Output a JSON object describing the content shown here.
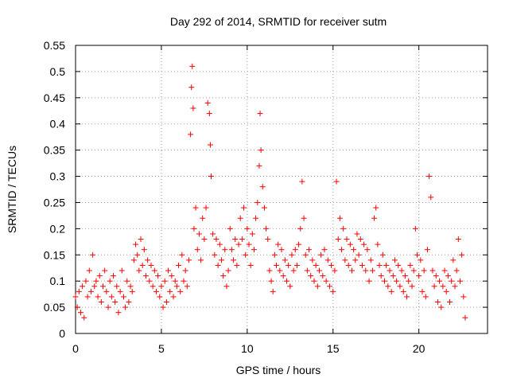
{
  "chart_data": {
    "type": "scatter",
    "title": "Day 292 of 2014, SRMTID for receiver sutm",
    "xlabel": "GPS time / hours",
    "ylabel": "SRMTID / TECUs",
    "xlim": [
      0,
      24
    ],
    "ylim": [
      0,
      0.55
    ],
    "x_ticks": [
      0,
      5,
      10,
      15,
      20
    ],
    "x_tick_labels": [
      "0",
      "5",
      "10",
      "15",
      "20"
    ],
    "y_ticks": [
      0,
      0.05,
      0.1,
      0.15,
      0.2,
      0.25,
      0.3,
      0.35,
      0.4,
      0.45,
      0.5,
      0.55
    ],
    "y_tick_labels": [
      "0",
      "0.05",
      "0.1",
      "0.15",
      "0.2",
      "0.25",
      "0.3",
      "0.35",
      "0.4",
      "0.45",
      "0.5",
      "0.55"
    ],
    "grid": true,
    "marker": "+",
    "series": [
      {
        "name": "SRMTID",
        "color": "#ff0000",
        "x": [
          0.0,
          0.1,
          0.2,
          0.3,
          0.4,
          0.5,
          0.6,
          0.7,
          0.8,
          0.9,
          1.0,
          1.1,
          1.2,
          1.3,
          1.4,
          1.5,
          1.6,
          1.7,
          1.8,
          1.9,
          2.0,
          2.1,
          2.2,
          2.3,
          2.4,
          2.5,
          2.6,
          2.7,
          2.8,
          2.9,
          3.0,
          3.1,
          3.2,
          3.3,
          3.4,
          3.5,
          3.6,
          3.7,
          3.8,
          3.9,
          4.0,
          4.1,
          4.2,
          4.3,
          4.4,
          4.5,
          4.6,
          4.7,
          4.8,
          4.9,
          5.0,
          5.1,
          5.2,
          5.3,
          5.4,
          5.5,
          5.6,
          5.7,
          5.8,
          5.9,
          6.0,
          6.1,
          6.2,
          6.3,
          6.4,
          6.5,
          6.6,
          6.7,
          6.75,
          6.8,
          6.85,
          6.9,
          7.0,
          7.1,
          7.2,
          7.3,
          7.4,
          7.5,
          7.6,
          7.7,
          7.8,
          7.85,
          7.9,
          8.0,
          8.1,
          8.2,
          8.3,
          8.4,
          8.5,
          8.6,
          8.7,
          8.8,
          8.9,
          9.0,
          9.1,
          9.2,
          9.3,
          9.4,
          9.5,
          9.6,
          9.7,
          9.8,
          9.9,
          10.0,
          10.1,
          10.2,
          10.3,
          10.4,
          10.5,
          10.6,
          10.7,
          10.75,
          10.8,
          10.9,
          11.0,
          11.1,
          11.2,
          11.3,
          11.4,
          11.5,
          11.6,
          11.7,
          11.8,
          11.9,
          12.0,
          12.1,
          12.2,
          12.3,
          12.4,
          12.5,
          12.6,
          12.7,
          12.8,
          12.9,
          13.0,
          13.1,
          13.2,
          13.3,
          13.4,
          13.5,
          13.6,
          13.7,
          13.8,
          13.9,
          14.0,
          14.1,
          14.2,
          14.3,
          14.4,
          14.5,
          14.6,
          14.7,
          14.8,
          14.9,
          15.0,
          15.1,
          15.2,
          15.3,
          15.4,
          15.5,
          15.6,
          15.7,
          15.8,
          15.9,
          16.0,
          16.1,
          16.2,
          16.3,
          16.4,
          16.5,
          16.6,
          16.7,
          16.8,
          16.9,
          17.0,
          17.1,
          17.2,
          17.3,
          17.4,
          17.5,
          17.6,
          17.7,
          17.8,
          17.9,
          18.0,
          18.1,
          18.2,
          18.3,
          18.4,
          18.5,
          18.6,
          18.7,
          18.8,
          18.9,
          19.0,
          19.1,
          19.2,
          19.3,
          19.4,
          19.5,
          19.6,
          19.7,
          19.8,
          19.9,
          20.0,
          20.1,
          20.2,
          20.3,
          20.4,
          20.5,
          20.6,
          20.7,
          20.8,
          20.9,
          21.0,
          21.1,
          21.2,
          21.3,
          21.4,
          21.5,
          21.6,
          21.7,
          21.8,
          21.9,
          22.0,
          22.1,
          22.2,
          22.3,
          22.4,
          22.5,
          22.6,
          22.7
        ],
        "y": [
          0.07,
          0.05,
          0.08,
          0.04,
          0.09,
          0.03,
          0.1,
          0.07,
          0.12,
          0.08,
          0.15,
          0.09,
          0.1,
          0.07,
          0.11,
          0.06,
          0.09,
          0.12,
          0.08,
          0.05,
          0.1,
          0.07,
          0.11,
          0.06,
          0.09,
          0.04,
          0.08,
          0.12,
          0.07,
          0.05,
          0.1,
          0.06,
          0.09,
          0.08,
          0.14,
          0.17,
          0.15,
          0.12,
          0.18,
          0.13,
          0.16,
          0.11,
          0.14,
          0.1,
          0.13,
          0.09,
          0.12,
          0.08,
          0.11,
          0.07,
          0.09,
          0.05,
          0.1,
          0.06,
          0.12,
          0.08,
          0.11,
          0.07,
          0.1,
          0.09,
          0.13,
          0.08,
          0.15,
          0.1,
          0.12,
          0.09,
          0.14,
          0.38,
          0.47,
          0.51,
          0.43,
          0.2,
          0.24,
          0.16,
          0.19,
          0.14,
          0.22,
          0.18,
          0.24,
          0.44,
          0.42,
          0.36,
          0.3,
          0.19,
          0.15,
          0.18,
          0.13,
          0.17,
          0.14,
          0.11,
          0.16,
          0.09,
          0.12,
          0.2,
          0.16,
          0.14,
          0.18,
          0.13,
          0.17,
          0.22,
          0.18,
          0.24,
          0.15,
          0.2,
          0.17,
          0.13,
          0.19,
          0.16,
          0.22,
          0.25,
          0.32,
          0.42,
          0.35,
          0.28,
          0.24,
          0.2,
          0.18,
          0.12,
          0.1,
          0.08,
          0.15,
          0.13,
          0.17,
          0.12,
          0.16,
          0.11,
          0.14,
          0.1,
          0.13,
          0.09,
          0.15,
          0.12,
          0.16,
          0.13,
          0.17,
          0.2,
          0.29,
          0.22,
          0.15,
          0.12,
          0.16,
          0.11,
          0.14,
          0.1,
          0.13,
          0.09,
          0.12,
          0.15,
          0.11,
          0.16,
          0.1,
          0.14,
          0.09,
          0.13,
          0.08,
          0.12,
          0.29,
          0.18,
          0.22,
          0.16,
          0.2,
          0.14,
          0.18,
          0.13,
          0.17,
          0.12,
          0.16,
          0.14,
          0.19,
          0.15,
          0.18,
          0.13,
          0.17,
          0.12,
          0.16,
          0.1,
          0.14,
          0.12,
          0.22,
          0.24,
          0.17,
          0.13,
          0.11,
          0.15,
          0.1,
          0.13,
          0.09,
          0.12,
          0.08,
          0.11,
          0.14,
          0.1,
          0.13,
          0.09,
          0.12,
          0.08,
          0.11,
          0.07,
          0.1,
          0.13,
          0.09,
          0.12,
          0.2,
          0.15,
          0.11,
          0.14,
          0.08,
          0.12,
          0.07,
          0.16,
          0.3,
          0.26,
          0.12,
          0.09,
          0.11,
          0.06,
          0.1,
          0.05,
          0.09,
          0.12,
          0.08,
          0.11,
          0.06,
          0.1,
          0.14,
          0.09,
          0.12,
          0.18,
          0.1,
          0.15,
          0.07,
          0.03
        ]
      }
    ]
  }
}
